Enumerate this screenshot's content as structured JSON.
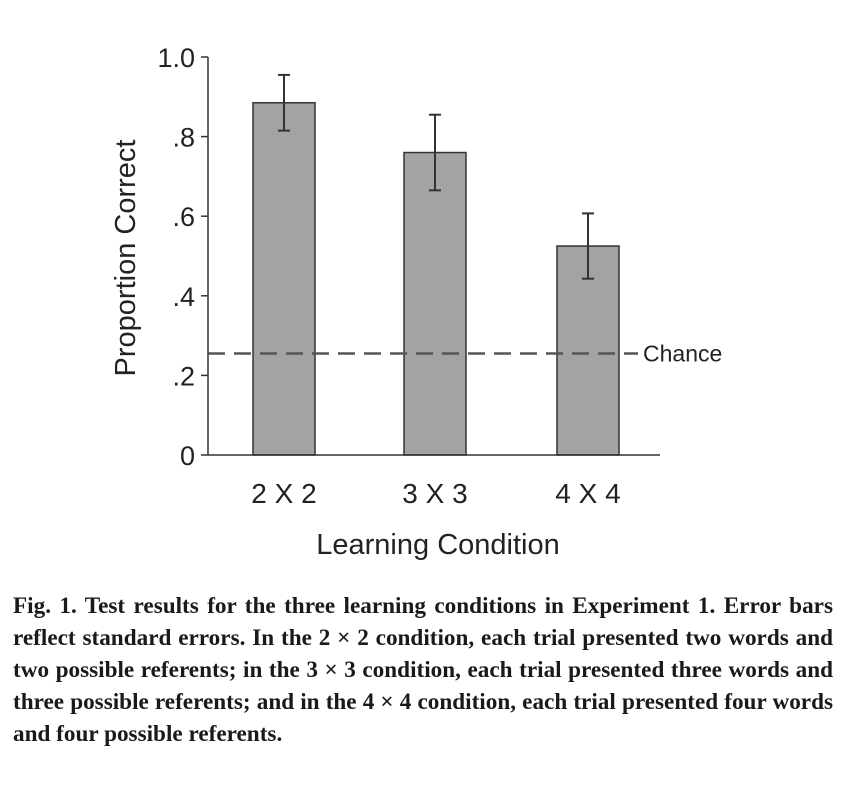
{
  "chart_data": {
    "type": "bar",
    "categories": [
      "2 X 2",
      "3 X 3",
      "4 X 4"
    ],
    "values": [
      0.885,
      0.76,
      0.525
    ],
    "error": [
      0.07,
      0.095,
      0.082
    ],
    "xlabel": "Learning Condition",
    "ylabel": "Proportion Correct",
    "ylim": [
      0,
      1.0
    ],
    "yticks": [
      {
        "value": 0,
        "label": "0"
      },
      {
        "value": 0.2,
        "label": ".2"
      },
      {
        "value": 0.4,
        "label": ".4"
      },
      {
        "value": 0.6,
        "label": ".6"
      },
      {
        "value": 0.8,
        "label": ".8"
      },
      {
        "value": 1.0,
        "label": "1.0"
      }
    ],
    "reference_line": {
      "value": 0.255,
      "label": "Chance",
      "style": "dashed"
    },
    "grid": false,
    "bar_color": "#a3a3a3",
    "line_color": "#333333"
  },
  "caption": {
    "label": "Fig. 1.",
    "text": "Test results for the three learning conditions in Experiment 1. Error bars reflect standard errors. In the 2 × 2 condition, each trial presented two words and two possible referents; in the 3 × 3 condition, each trial presented three words and three possible referents; and in the 4 × 4 condition, each trial presented four words and four possible referents."
  }
}
